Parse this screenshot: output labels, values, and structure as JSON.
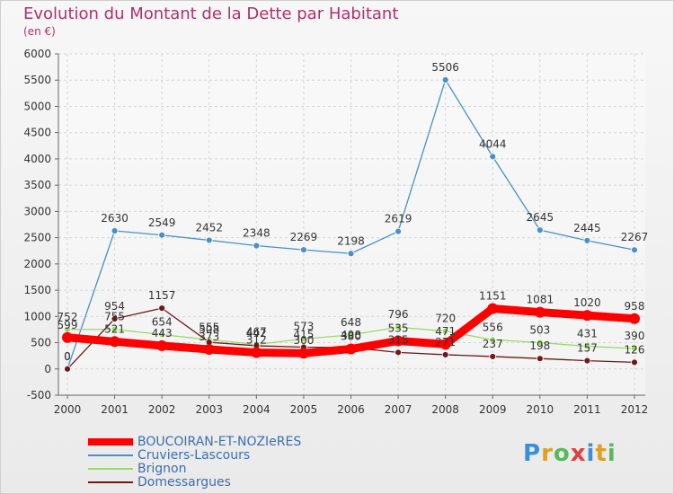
{
  "header": {
    "title": "Evolution du Montant de la Dette par Habitant",
    "subtitle": "(en €)"
  },
  "brand": {
    "letters": [
      "P",
      "r",
      "o",
      "x",
      "i",
      "t",
      "i"
    ],
    "colors": [
      "#3a8fd6",
      "#e0a020",
      "#5cb85c",
      "#e04040",
      "#3a8fd6",
      "#e0a020",
      "#5cb85c"
    ]
  },
  "chart_data": {
    "type": "line",
    "categories": [
      "2000",
      "2001",
      "2002",
      "2003",
      "2004",
      "2005",
      "2006",
      "2007",
      "2008",
      "2009",
      "2010",
      "2011",
      "2012"
    ],
    "ylim": [
      -500,
      6000
    ],
    "yticks": [
      -500,
      0,
      500,
      1000,
      1500,
      2000,
      2500,
      3000,
      3500,
      4000,
      4500,
      5000,
      5500,
      6000
    ],
    "grid": true,
    "legend_position": "bottom-left",
    "series": [
      {
        "name": "BOUCOIRAN-ET-NOZIeRES",
        "color": "#ff0000",
        "values": [
          599,
          521,
          443,
          373,
          312,
          300,
          380,
          535,
          471,
          1151,
          1081,
          1020,
          958
        ],
        "labels": [
          "599",
          "521",
          "443",
          "373",
          "312",
          "300",
          "380",
          "535",
          "471",
          "1151",
          "1081",
          "1020",
          "958"
        ]
      },
      {
        "name": "Cruviers-Lascours",
        "color": "#4a90c8",
        "values": [
          0,
          2630,
          2549,
          2452,
          2348,
          2269,
          2198,
          2619,
          5506,
          4044,
          2645,
          2445,
          2267
        ],
        "labels": [
          "0",
          "2630",
          "2549",
          "2452",
          "2348",
          "2269",
          "2198",
          "2619",
          "5506",
          "4044",
          "2645",
          "2445",
          "2267"
        ]
      },
      {
        "name": "Brignon",
        "color": "#99d966",
        "values": [
          752,
          755,
          654,
          555,
          467,
          573,
          648,
          796,
          720,
          556,
          503,
          431,
          390
        ],
        "labels": [
          "752",
          "755",
          "654",
          "555",
          "467",
          "573",
          "648",
          "796",
          "720",
          "556",
          "503",
          "431",
          "390"
        ]
      },
      {
        "name": "Domessargues",
        "color": "#6b1a1a",
        "values": [
          0,
          954,
          1157,
          508,
          442,
          415,
          408,
          315,
          271,
          237,
          198,
          157,
          126
        ],
        "labels": [
          "0",
          "954",
          "1157",
          "508",
          "442",
          "415",
          "408",
          "315",
          "271",
          "237",
          "198",
          "157",
          "126"
        ]
      }
    ]
  }
}
